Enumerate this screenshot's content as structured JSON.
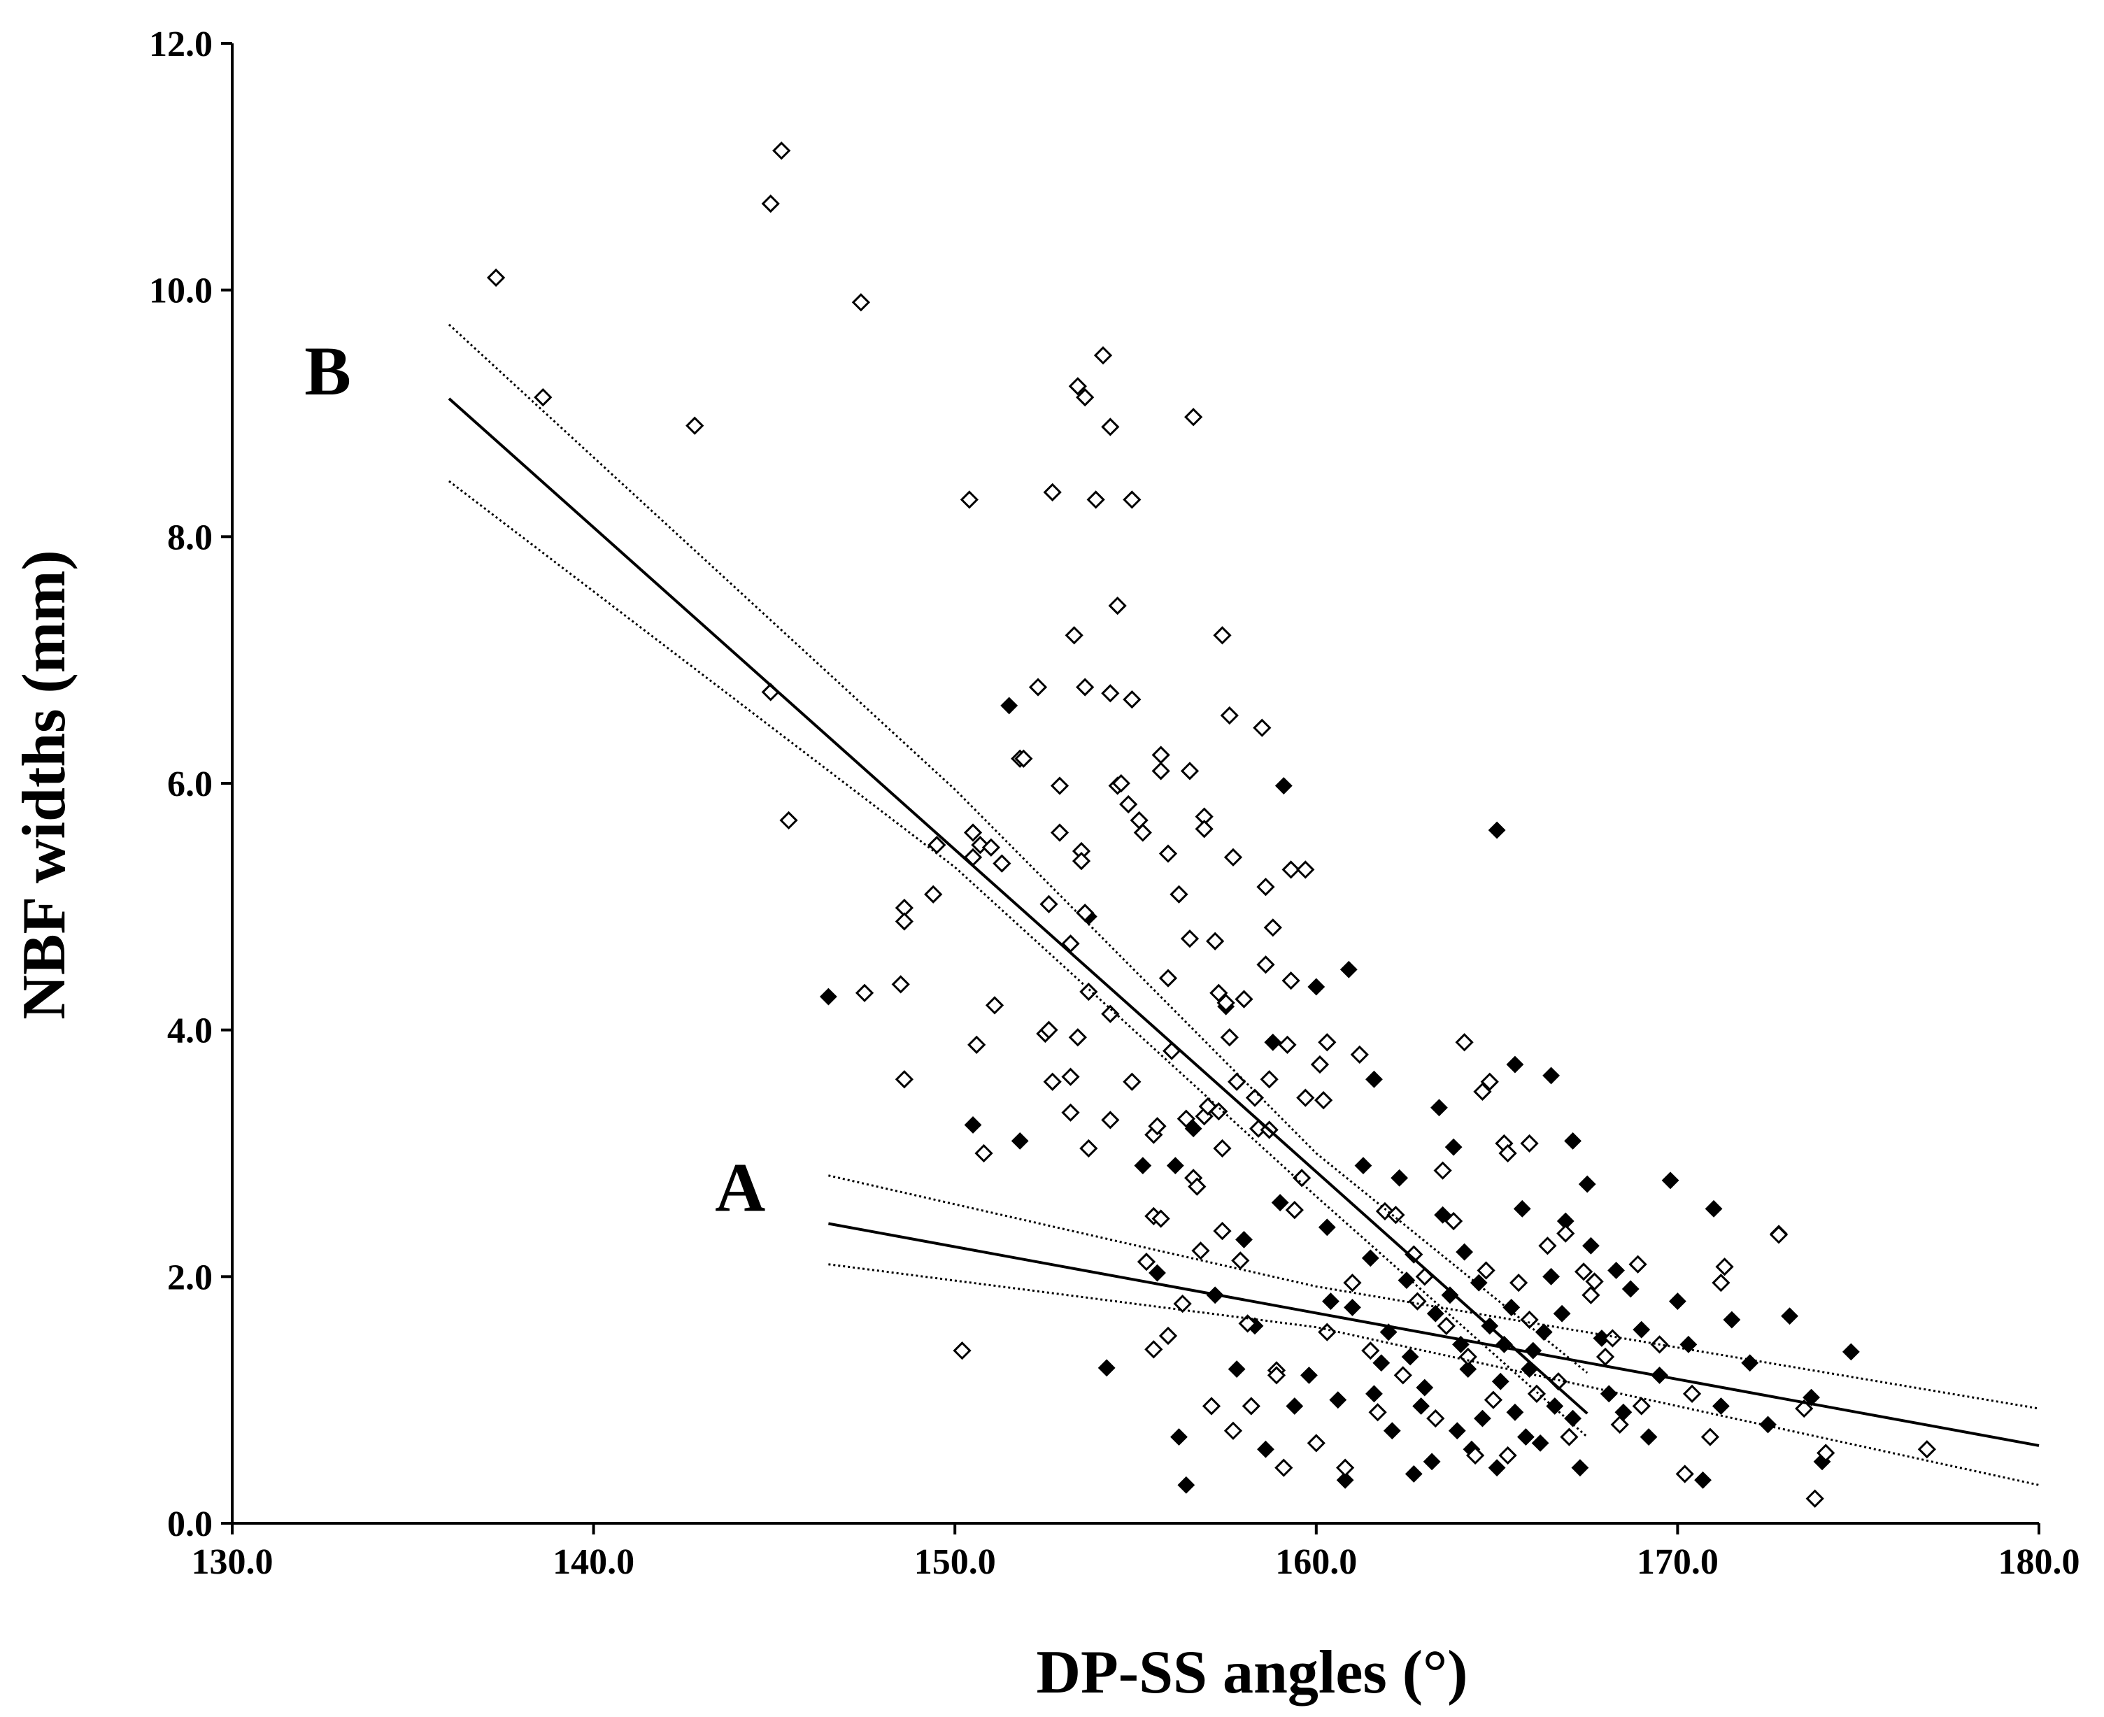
{
  "chart_data": {
    "type": "scatter",
    "title": "",
    "xlabel": "DP-SS angles (°)",
    "ylabel": "NBF widths (mm)",
    "xlim": [
      130,
      180
    ],
    "ylim": [
      0,
      12
    ],
    "x_ticks": [
      "130.0",
      "140.0",
      "150.0",
      "160.0",
      "170.0",
      "180.0"
    ],
    "y_ticks": [
      "0.0",
      "2.0",
      "4.0",
      "6.0",
      "8.0",
      "10.0",
      "12.0"
    ],
    "grid": false,
    "legend": "none",
    "series": [
      {
        "name": "Group A (filled diamonds)",
        "marker": "filled-diamond",
        "color": "#000000",
        "points": [
          [
            146.5,
            4.27
          ],
          [
            150.5,
            3.23
          ],
          [
            151.8,
            3.1
          ],
          [
            151.5,
            6.63
          ],
          [
            153.7,
            4.92
          ],
          [
            154.2,
            1.26
          ],
          [
            155.2,
            2.9
          ],
          [
            156.2,
            0.7
          ],
          [
            156.4,
            0.31
          ],
          [
            156.6,
            3.2
          ],
          [
            157.5,
            4.19
          ],
          [
            158.8,
            3.9
          ],
          [
            159.1,
            5.98
          ],
          [
            160.0,
            4.35
          ],
          [
            160.9,
            4.49
          ],
          [
            161.6,
            3.6
          ],
          [
            162.5,
            1.97
          ],
          [
            163.4,
            3.37
          ],
          [
            165.0,
            5.62
          ],
          [
            165.5,
            3.72
          ],
          [
            166.5,
            3.63
          ],
          [
            167.1,
            3.1
          ],
          [
            167.5,
            2.75
          ],
          [
            169.0,
            1.57
          ],
          [
            169.5,
            1.2
          ],
          [
            170.0,
            1.8
          ],
          [
            170.7,
            0.35
          ],
          [
            171.0,
            2.55
          ],
          [
            171.5,
            1.65
          ],
          [
            172.0,
            1.3
          ],
          [
            172.5,
            0.8
          ],
          [
            172.8,
            2.35
          ],
          [
            173.1,
            1.68
          ],
          [
            173.7,
            1.02
          ],
          [
            174.8,
            1.39
          ],
          [
            174.0,
            0.5
          ],
          [
            169.8,
            2.78
          ],
          [
            168.5,
            0.9
          ],
          [
            167.3,
            0.45
          ],
          [
            158.3,
            1.6
          ],
          [
            157.2,
            1.85
          ],
          [
            156.1,
            2.9
          ],
          [
            155.6,
            2.03
          ],
          [
            158.6,
            0.6
          ],
          [
            159.4,
            0.95
          ],
          [
            160.3,
            2.4
          ],
          [
            160.8,
            0.35
          ],
          [
            161.5,
            2.15
          ],
          [
            162.1,
            0.75
          ],
          [
            162.6,
            1.35
          ],
          [
            163.2,
            0.5
          ],
          [
            163.7,
            1.85
          ],
          [
            164.1,
            2.2
          ],
          [
            164.6,
            0.85
          ],
          [
            165.2,
            1.45
          ],
          [
            165.7,
            2.55
          ],
          [
            166.2,
            0.65
          ],
          [
            166.8,
            1.7
          ],
          [
            167.6,
            2.25
          ],
          [
            168.1,
            1.05
          ],
          [
            168.7,
            1.9
          ],
          [
            169.2,
            0.7
          ],
          [
            170.3,
            1.45
          ],
          [
            171.2,
            0.95
          ],
          [
            159.8,
            1.2
          ],
          [
            161.0,
            1.75
          ],
          [
            162.3,
            2.8
          ],
          [
            163.5,
            2.5
          ],
          [
            164.8,
            1.6
          ],
          [
            165.9,
            1.25
          ],
          [
            166.5,
            2.0
          ],
          [
            167.9,
            1.5
          ],
          [
            163.0,
            1.1
          ],
          [
            164.3,
            0.6
          ],
          [
            165.5,
            0.9
          ],
          [
            160.6,
            1.0
          ],
          [
            161.8,
            1.3
          ],
          [
            162.9,
            0.95
          ],
          [
            164.0,
            1.45
          ],
          [
            165.1,
            1.15
          ],
          [
            166.3,
            1.55
          ],
          [
            167.1,
            0.85
          ],
          [
            158.0,
            2.3
          ],
          [
            159.0,
            2.6
          ],
          [
            157.8,
            1.25
          ],
          [
            163.8,
            3.05
          ],
          [
            161.3,
            2.9
          ],
          [
            166.9,
            2.45
          ],
          [
            168.3,
            2.05
          ],
          [
            162.0,
            1.55
          ],
          [
            163.3,
            1.7
          ],
          [
            164.5,
            1.95
          ],
          [
            165.4,
            1.75
          ],
          [
            166.0,
            1.4
          ],
          [
            160.4,
            1.8
          ],
          [
            161.6,
            1.05
          ],
          [
            163.9,
            0.75
          ],
          [
            165.0,
            0.45
          ],
          [
            166.6,
            0.95
          ],
          [
            162.7,
            0.4
          ],
          [
            164.2,
            1.25
          ],
          [
            165.8,
            0.7
          ]
        ]
      },
      {
        "name": "Group B (open diamonds)",
        "marker": "open-diamond",
        "color": "#000000",
        "points": [
          [
            137.3,
            10.1
          ],
          [
            138.6,
            9.13
          ],
          [
            142.8,
            8.9
          ],
          [
            144.9,
            10.7
          ],
          [
            145.2,
            11.13
          ],
          [
            144.9,
            6.74
          ],
          [
            145.4,
            5.7
          ],
          [
            147.4,
            9.9
          ],
          [
            147.5,
            4.3
          ],
          [
            148.5,
            4.37
          ],
          [
            148.6,
            4.99
          ],
          [
            148.6,
            4.88
          ],
          [
            148.6,
            3.6
          ],
          [
            149.4,
            5.1
          ],
          [
            149.5,
            5.5
          ],
          [
            150.2,
            1.4
          ],
          [
            150.4,
            8.3
          ],
          [
            150.5,
            5.6
          ],
          [
            150.5,
            5.4
          ],
          [
            150.6,
            3.88
          ],
          [
            150.7,
            5.5
          ],
          [
            150.8,
            3.0
          ],
          [
            151.0,
            5.48
          ],
          [
            151.1,
            4.2
          ],
          [
            151.3,
            5.35
          ],
          [
            151.8,
            6.2
          ],
          [
            151.9,
            6.2
          ],
          [
            152.3,
            6.78
          ],
          [
            152.5,
            3.97
          ],
          [
            152.6,
            4.0
          ],
          [
            152.6,
            5.02
          ],
          [
            152.7,
            3.58
          ],
          [
            152.7,
            8.36
          ],
          [
            152.9,
            5.98
          ],
          [
            152.9,
            5.6
          ],
          [
            153.2,
            3.62
          ],
          [
            153.2,
            3.33
          ],
          [
            153.2,
            4.7
          ],
          [
            153.3,
            7.2
          ],
          [
            153.4,
            3.94
          ],
          [
            153.4,
            9.22
          ],
          [
            153.5,
            5.45
          ],
          [
            153.5,
            5.37
          ],
          [
            153.6,
            6.78
          ],
          [
            153.6,
            9.13
          ],
          [
            153.6,
            4.95
          ],
          [
            153.7,
            4.31
          ],
          [
            153.7,
            3.04
          ],
          [
            153.9,
            8.3
          ],
          [
            154.1,
            9.47
          ],
          [
            154.3,
            8.89
          ],
          [
            154.3,
            4.13
          ],
          [
            154.3,
            6.73
          ],
          [
            154.3,
            3.27
          ],
          [
            154.5,
            7.44
          ],
          [
            154.5,
            5.98
          ],
          [
            154.6,
            6.0
          ],
          [
            154.8,
            5.83
          ],
          [
            154.9,
            3.58
          ],
          [
            154.9,
            8.3
          ],
          [
            154.9,
            6.68
          ],
          [
            155.1,
            5.7
          ],
          [
            155.2,
            5.6
          ],
          [
            155.3,
            2.12
          ],
          [
            155.5,
            1.41
          ],
          [
            155.5,
            3.15
          ],
          [
            155.5,
            2.49
          ],
          [
            155.6,
            3.22
          ],
          [
            155.7,
            6.23
          ],
          [
            155.7,
            6.1
          ],
          [
            155.7,
            2.47
          ],
          [
            155.9,
            4.42
          ],
          [
            155.9,
            5.43
          ],
          [
            155.9,
            1.52
          ],
          [
            156.0,
            3.83
          ],
          [
            156.2,
            5.1
          ],
          [
            156.3,
            1.78
          ],
          [
            156.4,
            3.28
          ],
          [
            156.5,
            6.1
          ],
          [
            156.5,
            4.74
          ],
          [
            156.6,
            8.97
          ],
          [
            156.6,
            2.8
          ],
          [
            156.7,
            2.73
          ],
          [
            156.8,
            2.21
          ],
          [
            156.9,
            5.73
          ],
          [
            156.9,
            5.63
          ],
          [
            156.9,
            3.3
          ],
          [
            157.0,
            3.38
          ],
          [
            157.1,
            0.95
          ],
          [
            157.2,
            4.72
          ],
          [
            157.3,
            3.34
          ],
          [
            157.3,
            4.3
          ],
          [
            157.4,
            7.2
          ],
          [
            157.4,
            3.04
          ],
          [
            157.4,
            2.37
          ],
          [
            157.5,
            4.22
          ],
          [
            157.6,
            6.55
          ],
          [
            157.6,
            3.94
          ],
          [
            157.7,
            5.4
          ],
          [
            157.8,
            3.58
          ],
          [
            157.9,
            2.13
          ],
          [
            158.0,
            4.25
          ],
          [
            158.1,
            1.62
          ],
          [
            158.3,
            3.45
          ],
          [
            158.4,
            3.2
          ],
          [
            158.5,
            6.45
          ],
          [
            158.6,
            5.16
          ],
          [
            158.6,
            4.53
          ],
          [
            158.7,
            3.6
          ],
          [
            158.7,
            3.19
          ],
          [
            158.8,
            4.83
          ],
          [
            158.9,
            1.24
          ],
          [
            159.2,
            3.88
          ],
          [
            159.3,
            5.3
          ],
          [
            159.3,
            4.4
          ],
          [
            159.4,
            2.54
          ],
          [
            159.7,
            5.3
          ],
          [
            159.7,
            3.45
          ],
          [
            160.0,
            0.65
          ],
          [
            160.1,
            3.72
          ],
          [
            160.2,
            3.43
          ],
          [
            160.3,
            3.9
          ],
          [
            161.2,
            3.8
          ],
          [
            161.9,
            2.53
          ],
          [
            162.7,
            2.18
          ],
          [
            163.5,
            2.86
          ],
          [
            164.1,
            3.9
          ],
          [
            164.6,
            3.5
          ],
          [
            164.8,
            3.58
          ],
          [
            165.2,
            3.08
          ],
          [
            165.3,
            3.0
          ],
          [
            165.9,
            3.08
          ],
          [
            166.1,
            1.05
          ],
          [
            166.9,
            2.35
          ],
          [
            167.4,
            2.04
          ],
          [
            167.7,
            1.96
          ],
          [
            168.2,
            1.5
          ],
          [
            168.9,
            2.1
          ],
          [
            169.5,
            1.45
          ],
          [
            170.2,
            0.4
          ],
          [
            170.9,
            0.7
          ],
          [
            171.3,
            2.08
          ],
          [
            171.2,
            1.95
          ],
          [
            172.8,
            2.34
          ],
          [
            173.5,
            0.93
          ],
          [
            173.8,
            0.2
          ],
          [
            174.1,
            0.57
          ],
          [
            176.9,
            0.6
          ],
          [
            158.9,
            1.2
          ],
          [
            159.6,
            2.8
          ],
          [
            160.3,
            1.55
          ],
          [
            161.0,
            1.95
          ],
          [
            161.7,
            0.9
          ],
          [
            162.2,
            2.5
          ],
          [
            162.8,
            1.8
          ],
          [
            163.3,
            0.85
          ],
          [
            163.8,
            2.45
          ],
          [
            164.2,
            1.35
          ],
          [
            164.7,
            2.05
          ],
          [
            165.3,
            0.55
          ],
          [
            165.9,
            1.65
          ],
          [
            166.4,
            2.25
          ],
          [
            167.0,
            0.7
          ],
          [
            167.6,
            1.85
          ],
          [
            168.4,
            0.8
          ],
          [
            158.2,
            0.95
          ],
          [
            157.7,
            0.75
          ],
          [
            160.8,
            0.45
          ],
          [
            162.4,
            1.2
          ],
          [
            163.0,
            2.0
          ],
          [
            164.4,
            0.55
          ],
          [
            165.6,
            1.95
          ],
          [
            166.7,
            1.15
          ],
          [
            168.0,
            1.35
          ],
          [
            169.0,
            0.95
          ],
          [
            170.4,
            1.05
          ],
          [
            159.1,
            0.45
          ],
          [
            161.5,
            1.4
          ],
          [
            163.6,
            1.6
          ],
          [
            164.9,
            1.0
          ]
        ]
      }
    ],
    "regression_lines": [
      {
        "label": "A",
        "x_range": [
          146.5,
          180.0
        ],
        "fit": [
          [
            146.5,
            2.43
          ],
          [
            180.0,
            0.63
          ]
        ],
        "ci_upper": [
          [
            146.5,
            2.82
          ],
          [
            160.0,
            1.92
          ],
          [
            180.0,
            0.93
          ]
        ],
        "ci_lower": [
          [
            146.5,
            2.1
          ],
          [
            160.0,
            1.59
          ],
          [
            180.0,
            0.31
          ]
        ]
      },
      {
        "label": "B",
        "x_range": [
          136.0,
          167.5
        ],
        "fit": [
          [
            136.0,
            9.12
          ],
          [
            167.5,
            0.89
          ]
        ],
        "ci_upper": [
          [
            136.0,
            9.72
          ],
          [
            150.0,
            5.95
          ],
          [
            160.0,
            3.0
          ],
          [
            167.5,
            1.22
          ]
        ],
        "ci_lower": [
          [
            136.0,
            8.45
          ],
          [
            150.0,
            5.32
          ],
          [
            160.0,
            2.65
          ],
          [
            167.5,
            0.7
          ]
        ]
      }
    ]
  }
}
